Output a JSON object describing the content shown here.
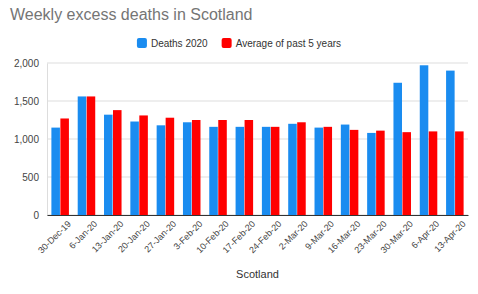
{
  "chart_data": {
    "type": "bar",
    "title": "Weekly excess deaths in Scotland",
    "x_label": "Scotland",
    "categories": [
      "30-Dec-19",
      "6-Jan-20",
      "13-Jan-20",
      "20-Jan-20",
      "27-Jan-20",
      "3-Feb-20",
      "10-Feb-20",
      "17-Feb-20",
      "24-Feb-20",
      "2-Mar-20",
      "9-Mar-20",
      "16-Mar-20",
      "23-Mar-20",
      "30-Mar-20",
      "6-Apr-20",
      "13-Apr-20"
    ],
    "series": [
      {
        "name": "Deaths 2020",
        "color": "#1a8cf0",
        "values": [
          1150,
          1560,
          1320,
          1230,
          1180,
          1220,
          1160,
          1160,
          1160,
          1200,
          1150,
          1190,
          1080,
          1740,
          1970,
          1900
        ]
      },
      {
        "name": "Average of past 5 years",
        "color": "#ff0000",
        "values": [
          1270,
          1560,
          1380,
          1310,
          1280,
          1250,
          1250,
          1250,
          1160,
          1220,
          1160,
          1120,
          1110,
          1090,
          1100,
          1100
        ]
      }
    ],
    "ylim": [
      0,
      2000
    ],
    "yticks": [
      0,
      500,
      {
        "value": 1000,
        "label": "1,000"
      },
      {
        "value": 1500,
        "label": "1,500"
      },
      {
        "value": 2000,
        "label": "2,000"
      }
    ],
    "grid": true,
    "legend": "top"
  }
}
